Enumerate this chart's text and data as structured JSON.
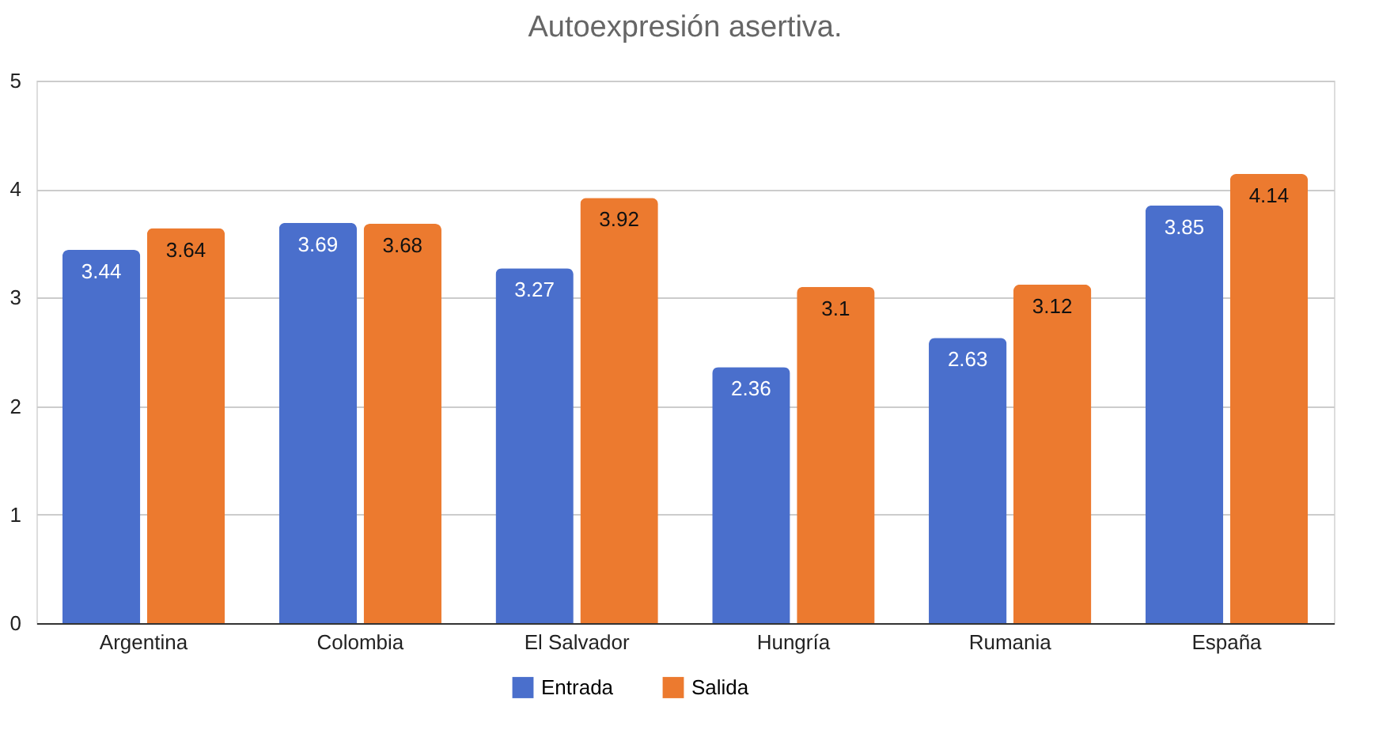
{
  "chart_data": {
    "type": "bar",
    "title": "Autoexpresión asertiva.",
    "categories": [
      "Argentina",
      "Colombia",
      "El Salvador",
      "Hungría",
      "Rumania",
      "España"
    ],
    "series": [
      {
        "name": "Entrada",
        "color": "#4a6fcc",
        "values": [
          3.44,
          3.69,
          3.27,
          2.36,
          2.63,
          3.85
        ]
      },
      {
        "name": "Salida",
        "color": "#ec7a2f",
        "values": [
          3.64,
          3.68,
          3.92,
          3.1,
          3.12,
          4.14
        ]
      }
    ],
    "ylim": [
      0,
      5
    ],
    "yticks": [
      0,
      1,
      2,
      3,
      4,
      5
    ],
    "grid": "y",
    "legend": "bottom",
    "data_labels": true
  }
}
